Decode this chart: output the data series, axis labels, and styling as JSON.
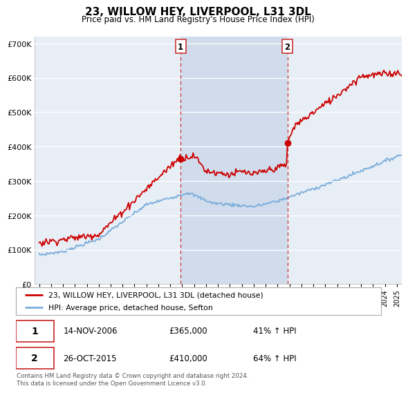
{
  "title": "23, WILLOW HEY, LIVERPOOL, L31 3DL",
  "subtitle": "Price paid vs. HM Land Registry's House Price Index (HPI)",
  "ylabel_values": [
    "£0",
    "£100K",
    "£200K",
    "£300K",
    "£400K",
    "£500K",
    "£600K",
    "£700K"
  ],
  "ylim": [
    0,
    720000
  ],
  "yticks": [
    0,
    100000,
    200000,
    300000,
    400000,
    500000,
    600000,
    700000
  ],
  "sale1_date_num": 2006.87,
  "sale1_price": 365000,
  "sale2_date_num": 2015.82,
  "sale2_price": 410000,
  "sale1_date_str": "14-NOV-2006",
  "sale1_price_str": "£365,000",
  "sale1_hpi_str": "41% ↑ HPI",
  "sale2_date_str": "26-OCT-2015",
  "sale2_price_str": "£410,000",
  "sale2_hpi_str": "64% ↑ HPI",
  "line_color_red": "#cc0000",
  "line_color_blue": "#7aaddb",
  "vline_color": "#cc3333",
  "plot_bg": "#e8eef5",
  "highlight_bg": "#d0dcec",
  "legend_label_red": "23, WILLOW HEY, LIVERPOOL, L31 3DL (detached house)",
  "legend_label_blue": "HPI: Average price, detached house, Sefton",
  "footer_text": "Contains HM Land Registry data © Crown copyright and database right 2024.\nThis data is licensed under the Open Government Licence v3.0.",
  "xlim_start": 1994.6,
  "xlim_end": 2025.4
}
